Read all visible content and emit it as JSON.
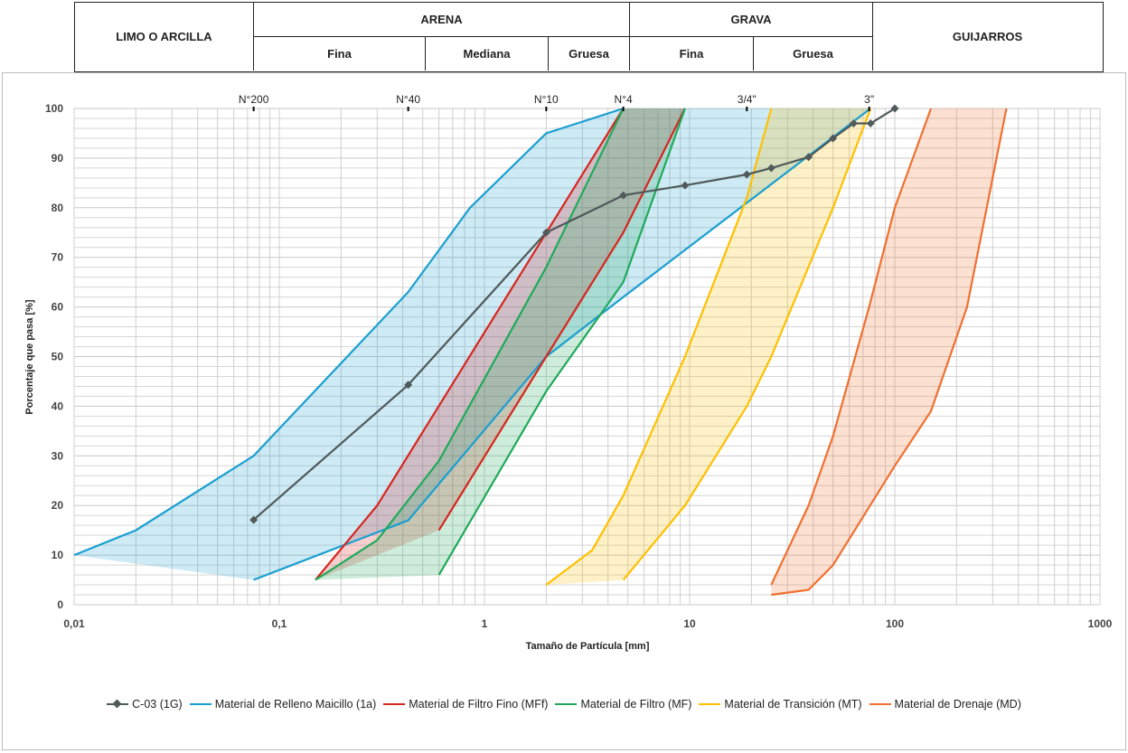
{
  "header": {
    "limo": "LIMO O ARCILLA",
    "arena": "ARENA",
    "grava": "GRAVA",
    "guijarros": "GUIJARROS",
    "arena_fina": "Fina",
    "arena_mediana": "Mediana",
    "arena_gruesa": "Gruesa",
    "grava_fina": "Fina",
    "grava_gruesa": "Gruesa"
  },
  "chart_data": {
    "type": "line",
    "xlabel": "Tamaño de Partícula [mm]",
    "ylabel": "Porcentaje que pasa [%]",
    "xscale": "log",
    "xlim": [
      0.01,
      1000
    ],
    "ylim": [
      0,
      100
    ],
    "xticks": [
      {
        "v": 0.01,
        "label": "0,01"
      },
      {
        "v": 0.1,
        "label": "0,1"
      },
      {
        "v": 1,
        "label": "1"
      },
      {
        "v": 10,
        "label": "10"
      },
      {
        "v": 100,
        "label": "100"
      },
      {
        "v": 1000,
        "label": "1000"
      }
    ],
    "yticks": [
      0,
      10,
      20,
      30,
      40,
      50,
      60,
      70,
      80,
      90,
      100
    ],
    "sieves": [
      {
        "v": 0.075,
        "label": "N°200"
      },
      {
        "v": 0.425,
        "label": "N°40"
      },
      {
        "v": 2,
        "label": "N°10"
      },
      {
        "v": 4.75,
        "label": "N°4"
      },
      {
        "v": 19,
        "label": "3/4\""
      },
      {
        "v": 75,
        "label": "3\""
      }
    ],
    "grid": true,
    "legend_position": "bottom",
    "bands": [
      {
        "name": "Material de Relleno Maicillo (1a)",
        "color": "#1a9fd0",
        "upper": [
          [
            0.01,
            10
          ],
          [
            0.02,
            15
          ],
          [
            0.075,
            30
          ],
          [
            0.425,
            63
          ],
          [
            0.85,
            80
          ],
          [
            2,
            95
          ],
          [
            4.75,
            100
          ]
        ],
        "lower": [
          [
            0.075,
            5
          ],
          [
            0.425,
            17
          ],
          [
            2,
            50
          ],
          [
            4.75,
            62
          ],
          [
            76.2,
            100
          ]
        ],
        "fill_start": [
          0.01,
          10
        ]
      },
      {
        "name": "Material de Filtro Fino (MFf)",
        "color": "#d7261e",
        "upper": [
          [
            0.15,
            5
          ],
          [
            0.3,
            20
          ],
          [
            4.75,
            100
          ]
        ],
        "lower": [
          [
            0.6,
            15
          ],
          [
            2,
            50
          ],
          [
            4.75,
            75
          ],
          [
            9.5,
            100
          ]
        ],
        "fill_start": [
          0.15,
          5
        ]
      },
      {
        "name": "Material de Filtro (MF)",
        "color": "#1faa5a",
        "upper": [
          [
            0.15,
            5
          ],
          [
            0.3,
            13
          ],
          [
            0.6,
            29
          ],
          [
            2,
            68
          ],
          [
            4.75,
            100
          ]
        ],
        "lower": [
          [
            0.6,
            6
          ],
          [
            2,
            43
          ],
          [
            4.75,
            65
          ],
          [
            9.5,
            100
          ]
        ],
        "fill_start": [
          0.15,
          5
        ]
      },
      {
        "name": "Material de Transición (MT)",
        "color": "#ffc000",
        "upper": [
          [
            2,
            4
          ],
          [
            3.35,
            11
          ],
          [
            4.75,
            22
          ],
          [
            9.5,
            50
          ],
          [
            19,
            82
          ],
          [
            25,
            100
          ]
        ],
        "lower": [
          [
            4.75,
            5
          ],
          [
            9.5,
            20
          ],
          [
            19,
            40
          ],
          [
            25,
            50
          ],
          [
            50,
            80
          ],
          [
            76.2,
            100
          ]
        ],
        "fill_start": [
          2,
          4
        ]
      },
      {
        "name": "Material de Drenaje (MD)",
        "color": "#f07030",
        "upper": [
          [
            25,
            4
          ],
          [
            38,
            20
          ],
          [
            50,
            34
          ],
          [
            75,
            60
          ],
          [
            100,
            80
          ],
          [
            150,
            100
          ]
        ],
        "lower": [
          [
            25,
            2
          ],
          [
            38,
            3
          ],
          [
            50,
            8
          ],
          [
            100,
            28
          ],
          [
            150,
            39
          ],
          [
            225,
            60
          ],
          [
            350,
            100
          ]
        ],
        "fill_start": [
          25,
          4
        ]
      }
    ],
    "series": [
      {
        "name": "C-03 (1G)",
        "color": "#505a5a",
        "marker": "diamond",
        "points": [
          [
            0.075,
            17.1
          ],
          [
            0.425,
            44.3
          ],
          [
            2,
            75
          ],
          [
            4.75,
            82.5
          ],
          [
            9.5,
            84.5
          ],
          [
            19,
            86.7
          ],
          [
            25,
            88
          ],
          [
            38,
            90.2
          ],
          [
            50,
            94
          ],
          [
            63,
            97
          ],
          [
            76.2,
            97
          ],
          [
            100,
            100
          ]
        ]
      }
    ]
  }
}
